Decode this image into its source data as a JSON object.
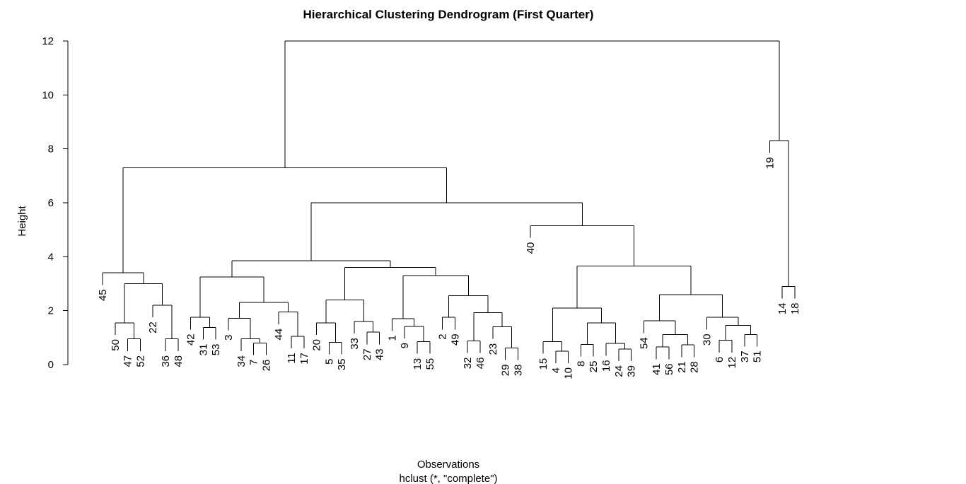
{
  "chart_data": {
    "type": "dendrogram",
    "title": "Hierarchical Clustering Dendrogram (First Quarter)",
    "xlabel": "Observations",
    "sublabel": "hclust (*, \"complete\")",
    "ylabel": "Height",
    "ylim": [
      0,
      12
    ],
    "yticks": [
      0,
      2,
      4,
      6,
      8,
      10,
      12
    ],
    "leaves": [
      "45",
      "50",
      "47",
      "52",
      "22",
      "36",
      "48",
      "42",
      "31",
      "53",
      "3",
      "34",
      "7",
      "26",
      "44",
      "11",
      "17",
      "20",
      "5",
      "35",
      "33",
      "27",
      "43",
      "1",
      "9",
      "13",
      "55",
      "2",
      "49",
      "32",
      "46",
      "23",
      "29",
      "38",
      "40",
      "15",
      "4",
      "10",
      "8",
      "25",
      "16",
      "24",
      "39",
      "54",
      "41",
      "56",
      "21",
      "28",
      "30",
      "6",
      "12",
      "37",
      "51",
      "19",
      "14",
      "18"
    ],
    "tree": [
      12.0,
      [
        7.3,
        [
          3.4,
          "45",
          [
            3.0,
            [
              1.55,
              "50",
              [
                0.95,
                "47",
                "52"
              ]
            ],
            [
              2.2,
              "22",
              [
                0.95,
                "36",
                "48"
              ]
            ]
          ]
        ],
        [
          6.0,
          [
            3.85,
            [
              3.25,
              [
                1.75,
                "42",
                [
                  1.38,
                  "31",
                  "53"
                ]
              ],
              [
                2.3,
                [
                  1.72,
                  "3",
                  [
                    0.95,
                    "34",
                    [
                      0.8,
                      "7",
                      "26"
                    ]
                  ]
                ],
                [
                  1.95,
                  "44",
                  [
                    1.05,
                    "11",
                    "17"
                  ]
                ]
              ]
            ],
            [
              3.6,
              [
                2.4,
                [
                  1.55,
                  "20",
                  [
                    0.83,
                    "5",
                    "35"
                  ]
                ],
                [
                  1.6,
                  "33",
                  [
                    1.2,
                    "27",
                    "43"
                  ]
                ]
              ],
              [
                3.3,
                [
                  1.7,
                  "1",
                  [
                    1.42,
                    "9",
                    [
                      0.85,
                      "13",
                      "55"
                    ]
                  ]
                ],
                [
                  2.55,
                  [
                    1.75,
                    "2",
                    "49"
                  ],
                  [
                    1.92,
                    [
                      0.88,
                      "32",
                      "46"
                    ],
                    [
                      1.4,
                      "23",
                      [
                        0.62,
                        "29",
                        "38"
                      ]
                    ]
                  ]
                ]
              ]
            ]
          ],
          [
            5.15,
            "40",
            [
              3.65,
              [
                2.1,
                [
                  0.85,
                  "15",
                  [
                    0.5,
                    "4",
                    "10"
                  ]
                ],
                [
                  1.55,
                  [
                    0.75,
                    "8",
                    "25"
                  ],
                  [
                    0.78,
                    "16",
                    [
                      0.58,
                      "24",
                      "39"
                    ]
                  ]
                ]
              ],
              [
                2.6,
                [
                  1.62,
                  "54",
                  [
                    1.12,
                    [
                      0.65,
                      "41",
                      "56"
                    ],
                    [
                      0.73,
                      "21",
                      "28"
                    ]
                  ]
                ],
                [
                  1.75,
                  "30",
                  [
                    1.45,
                    [
                      0.9,
                      "6",
                      "12"
                    ],
                    [
                      1.12,
                      "37",
                      "51"
                    ]
                  ]
                ]
              ]
            ]
          ]
        ]
      ],
      [
        8.3,
        "19",
        [
          2.9,
          "14",
          "18"
        ]
      ]
    ]
  }
}
